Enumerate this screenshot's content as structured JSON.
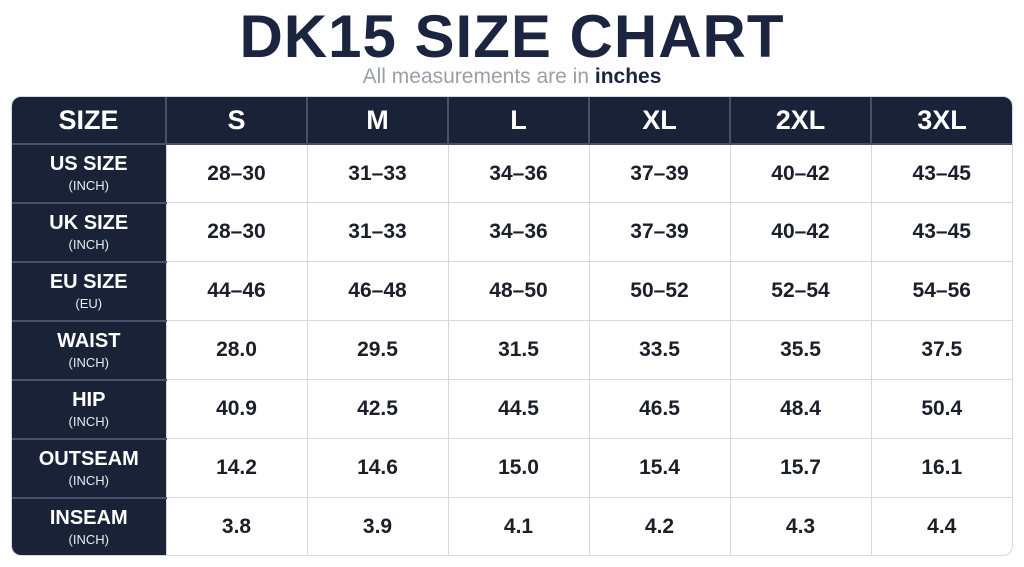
{
  "title": "DK15 SIZE CHART",
  "subtitle": {
    "prefix": "All measurements are in",
    "emphasis": "inches"
  },
  "table": {
    "corner_label": "SIZE",
    "columns": [
      "S",
      "M",
      "L",
      "XL",
      "2XL",
      "3XL"
    ],
    "rows": [
      {
        "label": "US SIZE",
        "unit": "(INCH)",
        "values": [
          "28–30",
          "31–33",
          "34–36",
          "37–39",
          "40–42",
          "43–45"
        ]
      },
      {
        "label": "UK SIZE",
        "unit": "(INCH)",
        "values": [
          "28–30",
          "31–33",
          "34–36",
          "37–39",
          "40–42",
          "43–45"
        ]
      },
      {
        "label": "EU SIZE",
        "unit": "(EU)",
        "values": [
          "44–46",
          "46–48",
          "48–50",
          "50–52",
          "52–54",
          "54–56"
        ]
      },
      {
        "label": "WAIST",
        "unit": "(INCH)",
        "values": [
          "28.0",
          "29.5",
          "31.5",
          "33.5",
          "35.5",
          "37.5"
        ]
      },
      {
        "label": "HIP",
        "unit": "(INCH)",
        "values": [
          "40.9",
          "42.5",
          "44.5",
          "46.5",
          "48.4",
          "50.4"
        ]
      },
      {
        "label": "OUTSEAM",
        "unit": "(INCH)",
        "values": [
          "14.2",
          "14.6",
          "15.0",
          "15.4",
          "15.7",
          "16.1"
        ]
      },
      {
        "label": "INSEAM",
        "unit": "(INCH)",
        "values": [
          "3.8",
          "3.9",
          "4.1",
          "4.2",
          "4.3",
          "4.4"
        ]
      }
    ]
  },
  "colors": {
    "header_bg": "#1a2238",
    "title_text": "#1b2540",
    "subtitle_text": "#9a9fa8",
    "grid_line": "#d5d8de"
  }
}
